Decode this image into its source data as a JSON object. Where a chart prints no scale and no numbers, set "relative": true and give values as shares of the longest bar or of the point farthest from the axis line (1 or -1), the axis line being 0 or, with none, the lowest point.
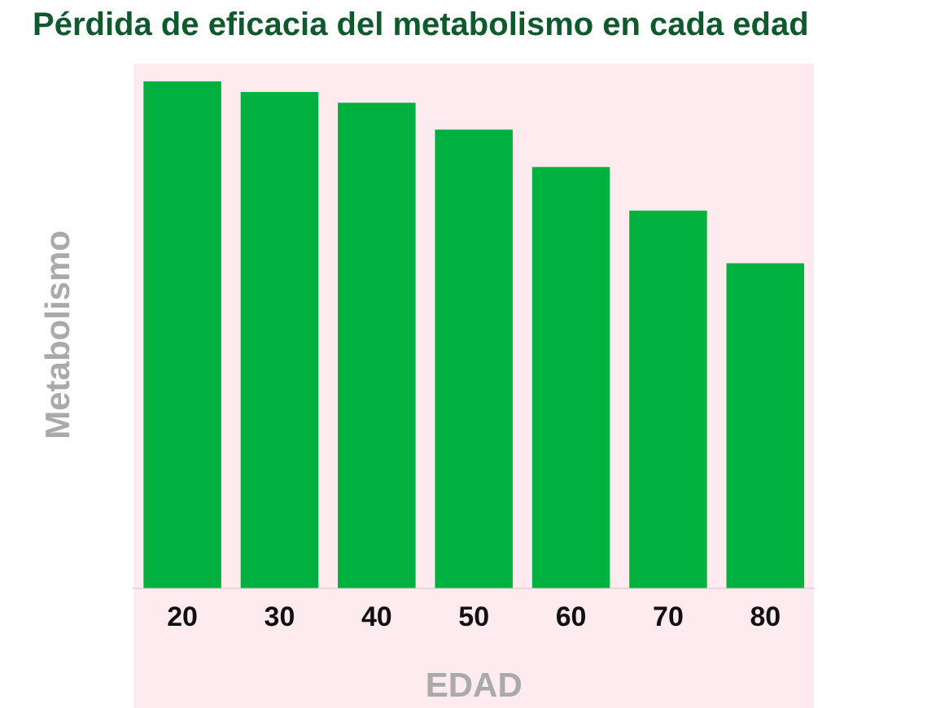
{
  "chart_data": {
    "type": "bar",
    "title": "Pérdida de eficacia del metabolismo en cada edad",
    "xlabel": "EDAD",
    "ylabel": "Metabolismo",
    "categories": [
      "20",
      "30",
      "40",
      "50",
      "60",
      "70",
      "80"
    ],
    "values": [
      1,
      0.979,
      0.958,
      0.905,
      0.831,
      0.745,
      0.641
    ],
    "color": "#00b140",
    "relative": true,
    "grid": false,
    "legend": false
  }
}
